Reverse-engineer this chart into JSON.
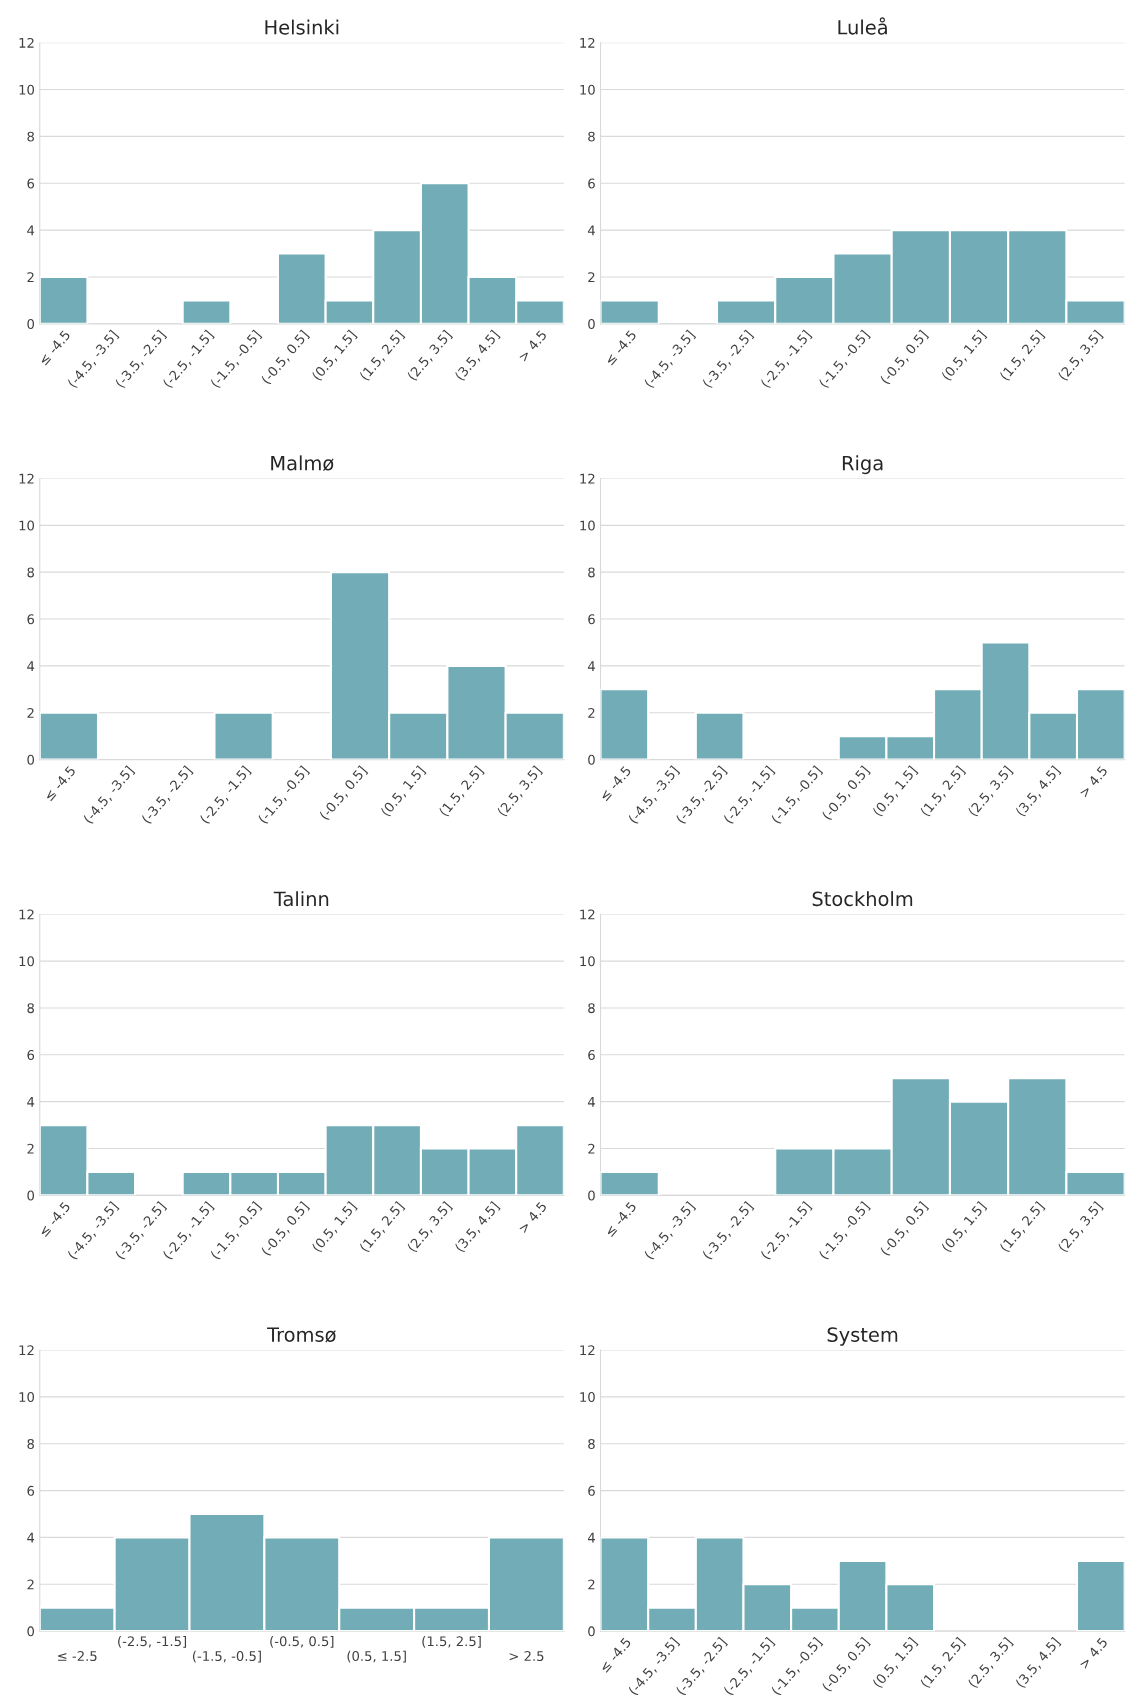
{
  "chart_data": [
    {
      "type": "bar",
      "title": "Helsinki",
      "categories": [
        "≤ -4.5",
        "(-4.5, -3.5]",
        "(-3.5, -2.5]",
        "(-2.5, -1.5]",
        "(-1.5, -0.5]",
        "(-0.5, 0.5]",
        "(0.5, 1.5]",
        "(1.5, 2.5]",
        "(2.5, 3.5]",
        "(3.5, 4.5]",
        "> 4.5"
      ],
      "values": [
        2,
        0,
        0,
        1,
        0,
        3,
        1,
        4,
        6,
        2,
        1
      ],
      "color": "#72adb7",
      "ylim": [
        0,
        12
      ],
      "yticks": [
        0,
        2,
        4,
        6,
        8,
        10,
        12
      ],
      "grid": "y"
    },
    {
      "type": "bar",
      "title": "Luleå",
      "categories": [
        "≤ -4.5",
        "(-4.5, -3.5]",
        "(-3.5, -2.5]",
        "(-2.5, -1.5]",
        "(-1.5, -0.5]",
        "(-0.5, 0.5]",
        "(0.5, 1.5]",
        "(1.5, 2.5]",
        "(2.5, 3.5]"
      ],
      "values": [
        1,
        0,
        1,
        2,
        3,
        4,
        4,
        4,
        1
      ],
      "color": "#72adb7",
      "ylim": [
        0,
        12
      ],
      "yticks": [
        0,
        2,
        4,
        6,
        8,
        10,
        12
      ],
      "grid": "y"
    },
    {
      "type": "bar",
      "title": "Malmø",
      "categories": [
        "≤ -4.5",
        "(-4.5, -3.5]",
        "(-3.5, -2.5]",
        "(-2.5, -1.5]",
        "(-1.5, -0.5]",
        "(-0.5, 0.5]",
        "(0.5, 1.5]",
        "(1.5, 2.5]",
        "(2.5, 3.5]"
      ],
      "values": [
        2,
        0,
        0,
        2,
        0,
        8,
        2,
        4,
        2
      ],
      "color": "#72adb7",
      "ylim": [
        0,
        12
      ],
      "yticks": [
        0,
        2,
        4,
        6,
        8,
        10,
        12
      ],
      "grid": "y"
    },
    {
      "type": "bar",
      "title": "Riga",
      "categories": [
        "≤ -4.5",
        "(-4.5, -3.5]",
        "(-3.5, -2.5]",
        "(-2.5, -1.5]",
        "(-1.5, -0.5]",
        "(-0.5, 0.5]",
        "(0.5, 1.5]",
        "(1.5, 2.5]",
        "(2.5, 3.5]",
        "(3.5, 4.5]",
        "> 4.5"
      ],
      "values": [
        3,
        0,
        2,
        0,
        0,
        1,
        1,
        3,
        5,
        2,
        3
      ],
      "color": "#72adb7",
      "ylim": [
        0,
        12
      ],
      "yticks": [
        0,
        2,
        4,
        6,
        8,
        10,
        12
      ],
      "grid": "y"
    },
    {
      "type": "bar",
      "title": "Talinn",
      "categories": [
        "≤ -4.5",
        "(-4.5, -3.5]",
        "(-3.5, -2.5]",
        "(-2.5, -1.5]",
        "(-1.5, -0.5]",
        "(-0.5, 0.5]",
        "(0.5, 1.5]",
        "(1.5, 2.5]",
        "(2.5, 3.5]",
        "(3.5, 4.5]",
        "> 4.5"
      ],
      "values": [
        3,
        1,
        0,
        1,
        1,
        1,
        3,
        3,
        2,
        2,
        3
      ],
      "color": "#72adb7",
      "ylim": [
        0,
        12
      ],
      "yticks": [
        0,
        2,
        4,
        6,
        8,
        10,
        12
      ],
      "grid": "y"
    },
    {
      "type": "bar",
      "title": "Stockholm",
      "categories": [
        "≤ -4.5",
        "(-4.5, -3.5]",
        "(-3.5, -2.5]",
        "(-2.5, -1.5]",
        "(-1.5, -0.5]",
        "(-0.5, 0.5]",
        "(0.5, 1.5]",
        "(1.5, 2.5]",
        "(2.5, 3.5]"
      ],
      "values": [
        1,
        0,
        0,
        2,
        2,
        5,
        4,
        5,
        1
      ],
      "color": "#72adb7",
      "ylim": [
        0,
        12
      ],
      "yticks": [
        0,
        2,
        4,
        6,
        8,
        10,
        12
      ],
      "grid": "y"
    },
    {
      "type": "bar",
      "title": "Tromsø",
      "categories": [
        "≤ -2.5",
        "(-2.5, -1.5]",
        "(-1.5, -0.5]",
        "(-0.5, 0.5]",
        "(0.5, 1.5]",
        "(1.5, 2.5]",
        "> 2.5"
      ],
      "values": [
        1,
        4,
        5,
        4,
        1,
        1,
        4
      ],
      "color": "#72adb7",
      "ylim": [
        0,
        12
      ],
      "yticks": [
        0,
        2,
        4,
        6,
        8,
        10,
        12
      ],
      "grid": "y"
    },
    {
      "type": "bar",
      "title": "System",
      "categories": [
        "≤ -4.5",
        "(-4.5, -3.5]",
        "(-3.5, -2.5]",
        "(-2.5, -1.5]",
        "(-1.5, -0.5]",
        "(-0.5, 0.5]",
        "(0.5, 1.5]",
        "(1.5, 2.5]",
        "(2.5, 3.5]",
        "(3.5, 4.5]",
        "> 4.5"
      ],
      "values": [
        4,
        1,
        4,
        2,
        1,
        3,
        2,
        0,
        0,
        0,
        3
      ],
      "color": "#72adb7",
      "ylim": [
        0,
        12
      ],
      "yticks": [
        0,
        2,
        4,
        6,
        8,
        10,
        12
      ],
      "grid": "y"
    }
  ]
}
